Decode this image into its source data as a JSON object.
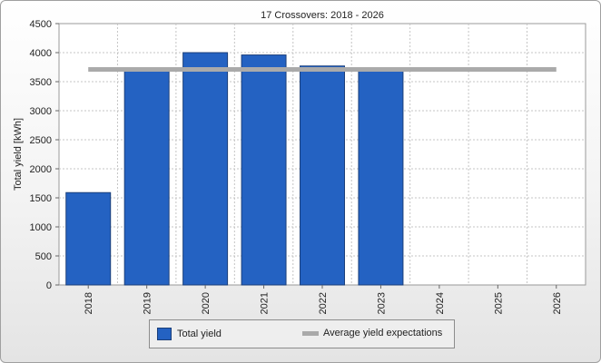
{
  "chart_data": {
    "type": "bar",
    "title": "17 Crossovers: 2018 - 2026",
    "ylabel": "Total yield [kWh]",
    "xlabel": "",
    "categories": [
      "2018",
      "2019",
      "2020",
      "2021",
      "2022",
      "2023",
      "2024",
      "2025",
      "2026"
    ],
    "series": [
      {
        "name": "Total yield",
        "type": "bar",
        "color": "#2462c2",
        "values": [
          1590,
          3680,
          4000,
          3960,
          3770,
          3690,
          null,
          null,
          null
        ]
      },
      {
        "name": "Average yield expectations",
        "type": "line",
        "color": "#aaaaaa",
        "value": 3710
      }
    ],
    "ylim": [
      0,
      4500
    ],
    "yticks": [
      0,
      500,
      1000,
      1500,
      2000,
      2500,
      3000,
      3500,
      4000,
      4500
    ],
    "grid": true,
    "legend_position": "bottom-center"
  }
}
